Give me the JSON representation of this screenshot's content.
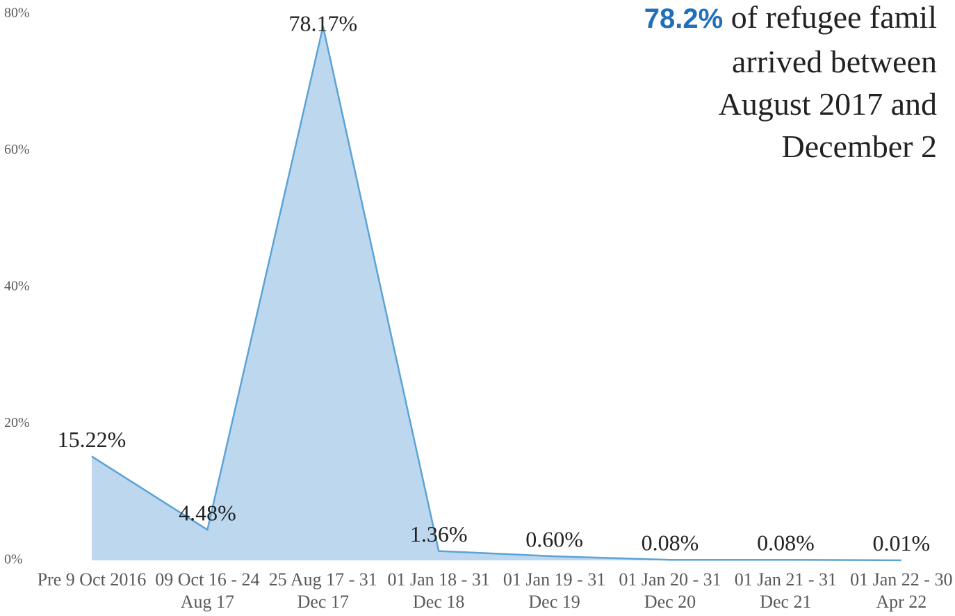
{
  "chart_data": {
    "type": "area",
    "annotation": {
      "highlight": "78.2%",
      "lines": [
        "of refugee famil",
        "arrived between",
        "August 2017 and",
        "December 2"
      ]
    },
    "categories": [
      "Pre 9 Oct 2016",
      "09 Oct 16 - 24 Aug 17",
      "25 Aug 17 - 31 Dec 17",
      "01 Jan 18 - 31 Dec 18",
      "01 Jan 19 - 31 Dec 19",
      "01 Jan 20 - 31 Dec 20",
      "01 Jan 21 - 31 Dec 21",
      "01 Jan 22 - 30 Apr 22"
    ],
    "values": [
      15.22,
      4.48,
      78.17,
      1.36,
      0.6,
      0.08,
      0.08,
      0.01
    ],
    "value_labels": [
      "15.22%",
      "4.48%",
      "78.17%",
      "1.36%",
      "0.60%",
      "0.08%",
      "0.08%",
      "0.01%"
    ],
    "color": "#bdd7ee",
    "line_color": "#5ba3d6",
    "ylim": [
      0,
      80
    ],
    "yticks": [
      {
        "value": 0,
        "label": "0%"
      },
      {
        "value": 20,
        "label": "20%"
      },
      {
        "value": 40,
        "label": "40%"
      },
      {
        "value": 60,
        "label": "60%"
      },
      {
        "value": 80,
        "label": "80%"
      }
    ]
  }
}
